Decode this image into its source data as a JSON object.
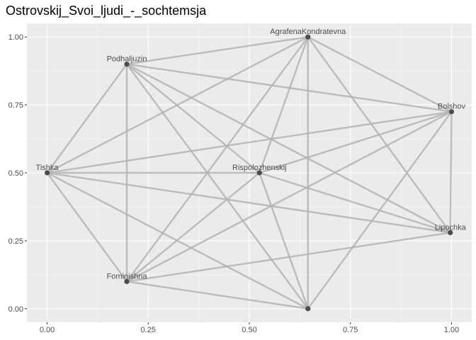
{
  "chart_data": {
    "type": "scatter",
    "title": "Ostrovskij_Svoi_ljudi_-_sochtemsja",
    "xlabel": "",
    "ylabel": "",
    "xlim": [
      -0.05,
      1.05
    ],
    "ylim": [
      -0.05,
      1.05
    ],
    "x_ticks": [
      0.0,
      0.25,
      0.5,
      0.75,
      1.0
    ],
    "x_tick_labels": [
      "0.00",
      "0.25",
      "0.50",
      "0.75",
      "1.00"
    ],
    "y_ticks": [
      0.0,
      0.25,
      0.5,
      0.75,
      1.0
    ],
    "y_tick_labels": [
      "0.00",
      "0.25",
      "0.50",
      "0.75",
      "1.00"
    ],
    "grid": true,
    "nodes": [
      {
        "id": "AgrafenaKondratevna",
        "label": "AgrafenaKondratevna",
        "x": 0.645,
        "y": 1.0
      },
      {
        "id": "Podhaljuzin",
        "label": "Podhaljuzin",
        "x": 0.197,
        "y": 0.9
      },
      {
        "id": "Bolshov",
        "label": "Bolshov",
        "x": 1.0,
        "y": 0.725
      },
      {
        "id": "Tishka",
        "label": "Tishka",
        "x": 0.0,
        "y": 0.5
      },
      {
        "id": "Rispolozhenskij",
        "label": "Rispolozhenskij",
        "x": 0.525,
        "y": 0.5
      },
      {
        "id": "Lipochka",
        "label": "Lipochka",
        "x": 0.997,
        "y": 0.28
      },
      {
        "id": "Fominishna",
        "label": "Fominishna",
        "x": 0.197,
        "y": 0.1
      },
      {
        "id": "unlabeled",
        "label": "",
        "x": 0.645,
        "y": 0.0
      }
    ],
    "edges": [
      [
        "Tishka",
        "Podhaljuzin"
      ],
      [
        "Tishka",
        "AgrafenaKondratevna"
      ],
      [
        "Tishka",
        "Bolshov"
      ],
      [
        "Tishka",
        "Rispolozhenskij"
      ],
      [
        "Tishka",
        "Lipochka"
      ],
      [
        "Tishka",
        "Fominishna"
      ],
      [
        "Tishka",
        "unlabeled"
      ],
      [
        "Podhaljuzin",
        "AgrafenaKondratevna"
      ],
      [
        "Podhaljuzin",
        "Bolshov"
      ],
      [
        "Podhaljuzin",
        "Lipochka"
      ],
      [
        "Podhaljuzin",
        "Fominishna"
      ],
      [
        "Podhaljuzin",
        "unlabeled"
      ],
      [
        "Podhaljuzin",
        "Rispolozhenskij"
      ],
      [
        "AgrafenaKondratevna",
        "Bolshov"
      ],
      [
        "AgrafenaKondratevna",
        "Lipochka"
      ],
      [
        "AgrafenaKondratevna",
        "Fominishna"
      ],
      [
        "AgrafenaKondratevna",
        "unlabeled"
      ],
      [
        "AgrafenaKondratevna",
        "Rispolozhenskij"
      ],
      [
        "Bolshov",
        "Rispolozhenskij"
      ],
      [
        "Bolshov",
        "Lipochka"
      ],
      [
        "Bolshov",
        "Fominishna"
      ],
      [
        "Bolshov",
        "unlabeled"
      ],
      [
        "Rispolozhenskij",
        "Lipochka"
      ],
      [
        "Rispolozhenskij",
        "Fominishna"
      ],
      [
        "Rispolozhenskij",
        "unlabeled"
      ],
      [
        "Lipochka",
        "Fominishna"
      ],
      [
        "Fominishna",
        "unlabeled"
      ]
    ],
    "colors": {
      "panel_background": "#ebebeb",
      "grid_major": "#ffffff",
      "edge": "#b3b3b3",
      "node": "#4d4d4d",
      "tick_label": "#4d4d4d",
      "tick_mark": "#333333"
    }
  }
}
